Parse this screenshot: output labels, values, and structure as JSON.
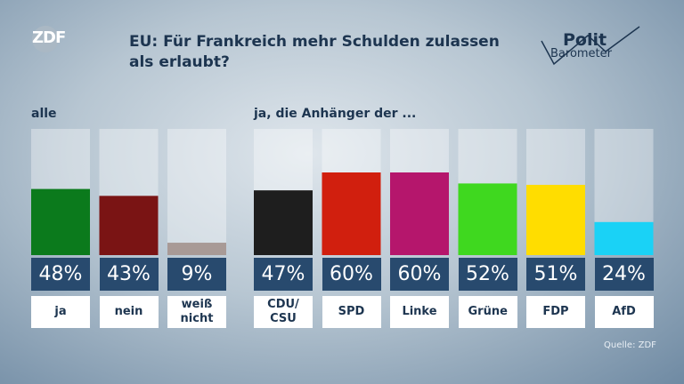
{
  "chart_data": {
    "type": "bar",
    "title": "EU: Für Frankreich mehr Schulden zulassen als erlaubt?",
    "logo": "ZDF",
    "brand": [
      "Polit",
      "Barometer"
    ],
    "source": "Quelle: ZDF",
    "groups": [
      {
        "label": "alle",
        "categories": [
          "ja",
          "nein",
          "weiß nicht"
        ],
        "values": [
          48,
          43,
          9
        ],
        "value_labels": [
          "48%",
          "43%",
          "9%"
        ],
        "colors": [
          "#0b7a1c",
          "#7a1414",
          "#a89a96"
        ]
      },
      {
        "label": "ja, die Anhänger der ...",
        "categories": [
          "CDU/ CSU",
          "SPD",
          "Linke",
          "Grüne",
          "FDP",
          "AfD"
        ],
        "values": [
          47,
          60,
          60,
          52,
          51,
          24
        ],
        "value_labels": [
          "47%",
          "60%",
          "60%",
          "52%",
          "51%",
          "24%"
        ],
        "colors": [
          "#1e1e1e",
          "#d11f0e",
          "#b5166c",
          "#3fd81f",
          "#ffdd00",
          "#1ad2f6"
        ]
      }
    ]
  }
}
